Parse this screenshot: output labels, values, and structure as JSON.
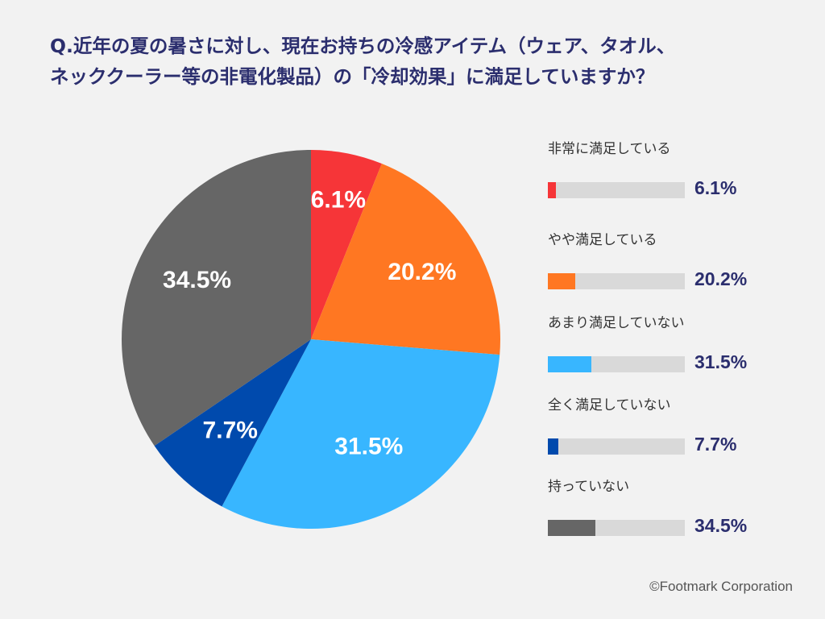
{
  "chart_data": {
    "type": "pie",
    "title_lines": [
      "Q.近年の夏の暑さに対し、現在お持ちの冷感アイテム（ウェア、タオル、",
      "ネッククーラー等の非電化製品）の「冷却効果」に満足していますか？"
    ],
    "categories": [
      "非常に満足している",
      "やや満足している",
      "あまり満足していない",
      "全く満足していない",
      "持っていない"
    ],
    "values": [
      6.1,
      20.2,
      31.5,
      7.7,
      34.5
    ],
    "value_labels": [
      "6.1%",
      "20.2%",
      "31.5%",
      "7.7%",
      "34.5%"
    ],
    "colors": [
      "#f63538",
      "#ff7722",
      "#38b6ff",
      "#004aad",
      "#666666"
    ],
    "legend_position": "right",
    "start_angle": "12 o'clock, clockwise"
  },
  "credit": "©Footmark Corporation"
}
